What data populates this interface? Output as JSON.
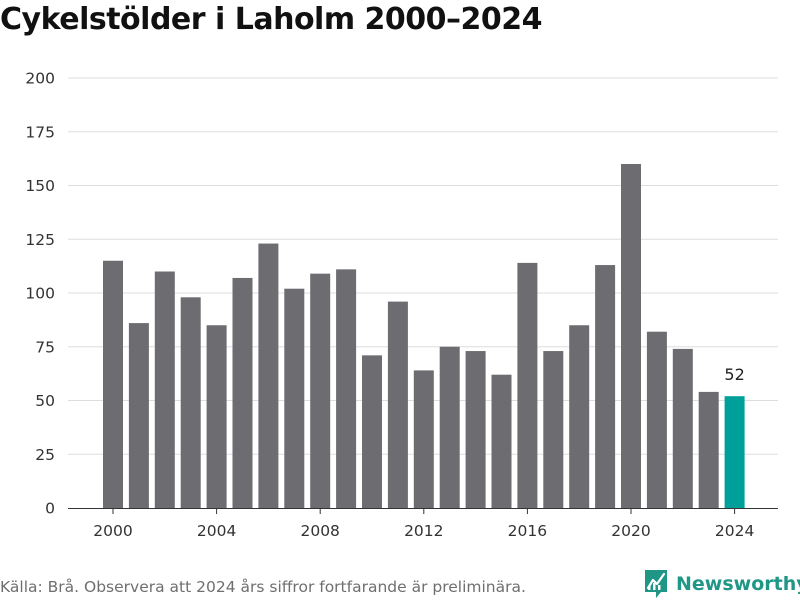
{
  "title": "Cykelstölder i Laholm 2000–2024",
  "source": "Källa: Brå. Observera att 2024 års siffror fortfarande är preliminära.",
  "brand": {
    "name": "Newsworthy",
    "icon": "newsworthy-logo-icon"
  },
  "colors": {
    "bar": "#6d6c71",
    "highlight": "#00a09a",
    "grid": "#dddddd",
    "axis": "#333333",
    "brand": "#1f9686"
  },
  "chart_data": {
    "type": "bar",
    "title": "Cykelstölder i Laholm 2000–2024",
    "xlabel": "",
    "ylabel": "",
    "categories": [
      2000,
      2001,
      2002,
      2003,
      2004,
      2005,
      2006,
      2007,
      2008,
      2009,
      2010,
      2011,
      2012,
      2013,
      2014,
      2015,
      2016,
      2017,
      2018,
      2019,
      2020,
      2021,
      2022,
      2023,
      2024
    ],
    "values": [
      115,
      86,
      110,
      98,
      85,
      107,
      123,
      102,
      109,
      111,
      71,
      96,
      64,
      75,
      73,
      62,
      114,
      73,
      85,
      113,
      160,
      82,
      74,
      54,
      52
    ],
    "highlight_category": 2024,
    "data_labels": [
      {
        "category": 2024,
        "text": "52"
      }
    ],
    "ylim": [
      0,
      200
    ],
    "yticks": [
      0,
      25,
      50,
      75,
      100,
      125,
      150,
      175,
      200
    ],
    "xticks": [
      2000,
      2004,
      2008,
      2012,
      2016,
      2020,
      2024
    ],
    "grid": true,
    "legend": "none"
  }
}
